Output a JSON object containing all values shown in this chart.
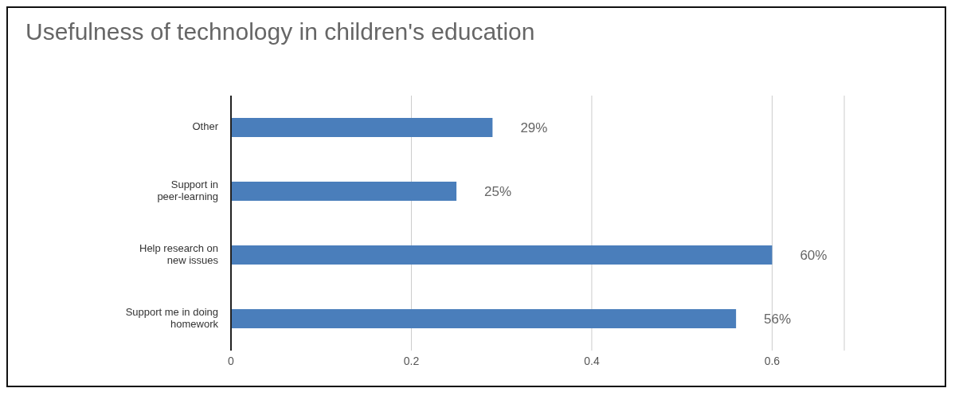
{
  "chart_data": {
    "type": "bar",
    "orientation": "horizontal",
    "title": "Usefulness of technology in children's education",
    "categories": [
      "Other",
      "Support in peer-learning",
      "Help research on new issues",
      "Support me in doing homework"
    ],
    "values": [
      0.29,
      0.25,
      0.6,
      0.56
    ],
    "value_labels": [
      "29%",
      "25%",
      "60%",
      "56%"
    ],
    "color": "#4a7ebb",
    "xlim": [
      0,
      0.68
    ],
    "xticks": [
      0,
      0.2,
      0.4,
      0.6
    ],
    "grid": "x",
    "legend": false
  }
}
